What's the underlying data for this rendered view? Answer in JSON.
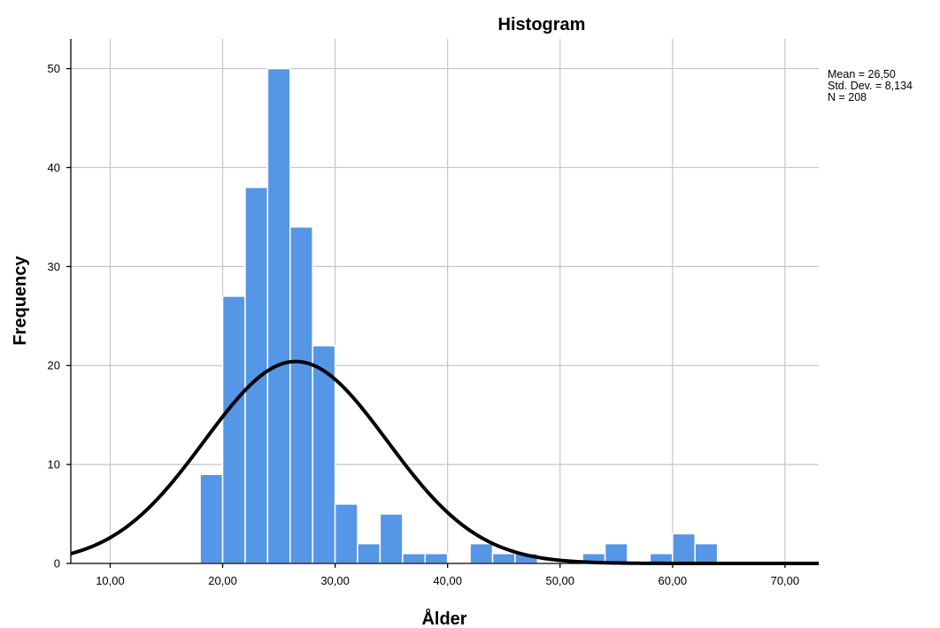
{
  "chart_data": {
    "type": "bar",
    "title": "Histogram",
    "xlabel": "Ålder",
    "ylabel": "Frequency",
    "xlim": [
      6.5,
      73
    ],
    "ylim": [
      0,
      53
    ],
    "x_ticks": [
      {
        "value": 10,
        "label": "10,00"
      },
      {
        "value": 20,
        "label": "20,00"
      },
      {
        "value": 30,
        "label": "30,00"
      },
      {
        "value": 40,
        "label": "40,00"
      },
      {
        "value": 50,
        "label": "50,00"
      },
      {
        "value": 60,
        "label": "60,00"
      },
      {
        "value": 70,
        "label": "70,00"
      }
    ],
    "y_ticks": [
      {
        "value": 0,
        "label": "0"
      },
      {
        "value": 10,
        "label": "10"
      },
      {
        "value": 20,
        "label": "20"
      },
      {
        "value": 30,
        "label": "30"
      },
      {
        "value": 40,
        "label": "40"
      },
      {
        "value": 50,
        "label": "50"
      }
    ],
    "grid": true,
    "bin_width": 2,
    "bins": [
      {
        "start": 18,
        "count": 9
      },
      {
        "start": 20,
        "count": 27
      },
      {
        "start": 22,
        "count": 38
      },
      {
        "start": 24,
        "count": 50
      },
      {
        "start": 26,
        "count": 34
      },
      {
        "start": 28,
        "count": 22
      },
      {
        "start": 30,
        "count": 6
      },
      {
        "start": 32,
        "count": 2
      },
      {
        "start": 34,
        "count": 5
      },
      {
        "start": 36,
        "count": 1
      },
      {
        "start": 38,
        "count": 1
      },
      {
        "start": 42,
        "count": 2
      },
      {
        "start": 44,
        "count": 1
      },
      {
        "start": 46,
        "count": 1
      },
      {
        "start": 52,
        "count": 1
      },
      {
        "start": 54,
        "count": 2
      },
      {
        "start": 58,
        "count": 1
      },
      {
        "start": 60,
        "count": 3
      },
      {
        "start": 62,
        "count": 2
      }
    ],
    "normal_curve": {
      "mean": 26.5,
      "sd": 8.134,
      "n": 208
    },
    "stats_lines": [
      "Mean = 26,50",
      "Std. Dev. = 8,134",
      "N = 208"
    ],
    "bar_color": "#5596e6",
    "curve_color": "#000000",
    "legend_position": "top-right"
  }
}
